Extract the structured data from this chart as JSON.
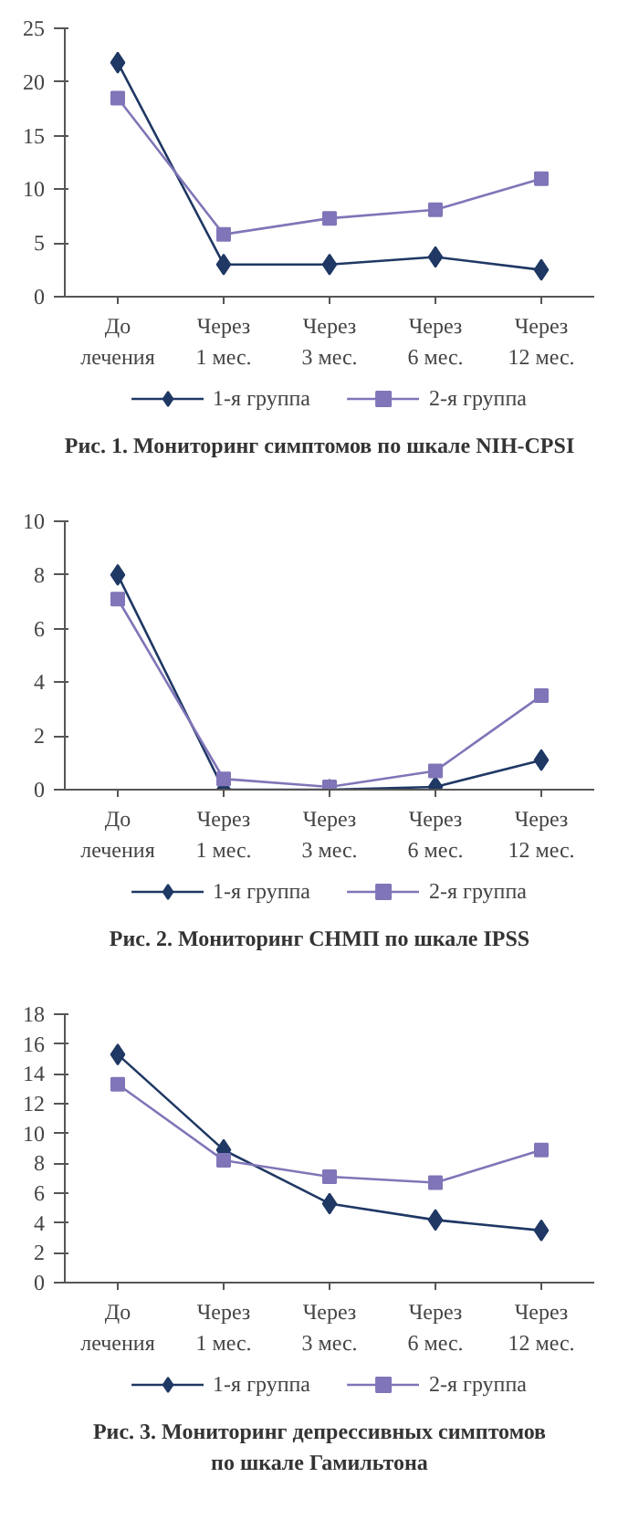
{
  "chart_data": [
    {
      "type": "line",
      "title": "Рис. 1. Мониторинг симптомов по шкале NIH-CPSI",
      "categories": [
        "До\nлечения",
        "Через\n1 мес.",
        "Через\n3 мес.",
        "Через\n6 мес.",
        "Через\n12 мес."
      ],
      "ylim": [
        0,
        25
      ],
      "yticks": [
        0,
        5,
        10,
        15,
        20,
        25
      ],
      "grid": false,
      "legend": "bottom",
      "series": [
        {
          "name": "1-я группа",
          "color": "#1f3864",
          "marker": "diamond",
          "values": [
            21.8,
            3.0,
            3.0,
            3.7,
            2.5
          ]
        },
        {
          "name": "2-я группа",
          "color": "#8075b8",
          "marker": "square",
          "values": [
            18.5,
            5.8,
            7.3,
            8.1,
            11.0
          ]
        }
      ]
    },
    {
      "type": "line",
      "title": "Рис. 2. Мониторинг СНМП по шкале IPSS",
      "categories": [
        "До\nлечения",
        "Через\n1 мес.",
        "Через\n3 мес.",
        "Через\n6 мес.",
        "Через\n12 мес."
      ],
      "ylim": [
        0,
        10
      ],
      "yticks": [
        0,
        2,
        4,
        6,
        8,
        10
      ],
      "grid": false,
      "legend": "bottom",
      "series": [
        {
          "name": "1-я группа",
          "color": "#1f3864",
          "marker": "diamond",
          "values": [
            8.0,
            0.0,
            0.0,
            0.1,
            1.1
          ]
        },
        {
          "name": "2-я группа",
          "color": "#8075b8",
          "marker": "square",
          "values": [
            7.1,
            0.4,
            0.1,
            0.7,
            3.5
          ]
        }
      ]
    },
    {
      "type": "line",
      "title": "Рис. 3. Мониторинг депрессивных симптомов\nпо шкале Гамильтона",
      "categories": [
        "До\nлечения",
        "Через\n1 мес.",
        "Через\n3 мес.",
        "Через\n6 мес.",
        "Через\n12 мес."
      ],
      "ylim": [
        0,
        18
      ],
      "yticks": [
        0,
        2,
        4,
        6,
        8,
        10,
        12,
        14,
        16,
        18
      ],
      "grid": false,
      "legend": "bottom",
      "series": [
        {
          "name": "1-я группа",
          "color": "#1f3864",
          "marker": "diamond",
          "values": [
            15.3,
            8.9,
            5.3,
            4.2,
            3.5
          ]
        },
        {
          "name": "2-я группа",
          "color": "#8075b8",
          "marker": "square",
          "values": [
            13.3,
            8.2,
            7.1,
            6.7,
            8.9
          ]
        }
      ]
    }
  ]
}
